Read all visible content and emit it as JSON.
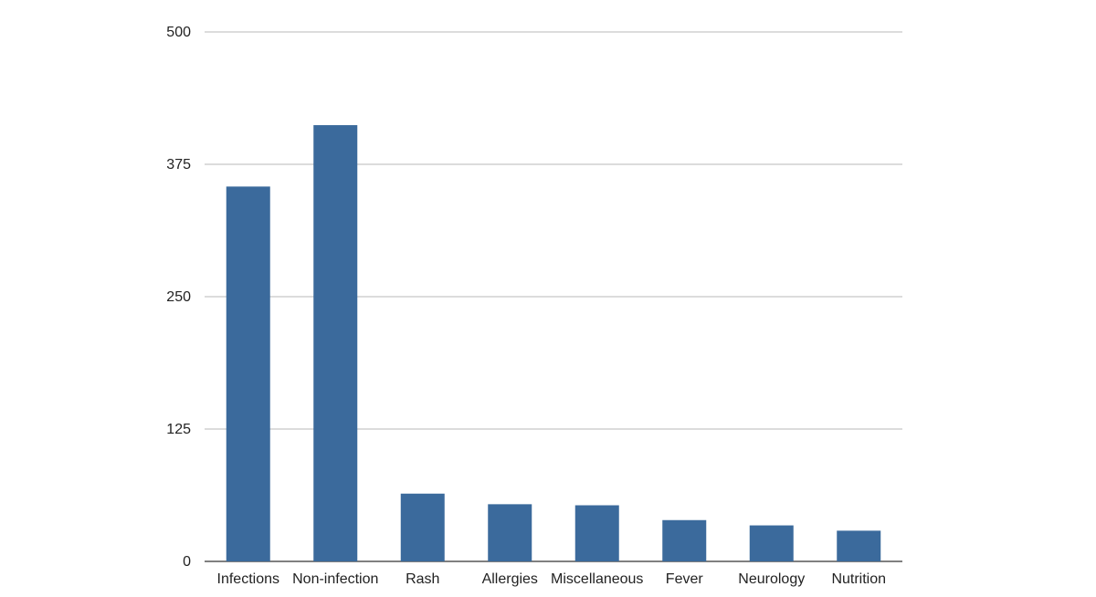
{
  "chart_data": {
    "type": "bar",
    "categories": [
      "Infections",
      "Non-infection",
      "Rash",
      "Allergies",
      "Miscellaneous",
      "Fever",
      "Neurology",
      "Nutrition"
    ],
    "values": [
      354,
      412,
      64,
      54,
      53,
      39,
      34,
      29
    ],
    "color": "#3b6a9c",
    "ylim": [
      0,
      500
    ],
    "yticks": [
      0,
      125,
      250,
      375,
      500
    ],
    "grid": true
  }
}
